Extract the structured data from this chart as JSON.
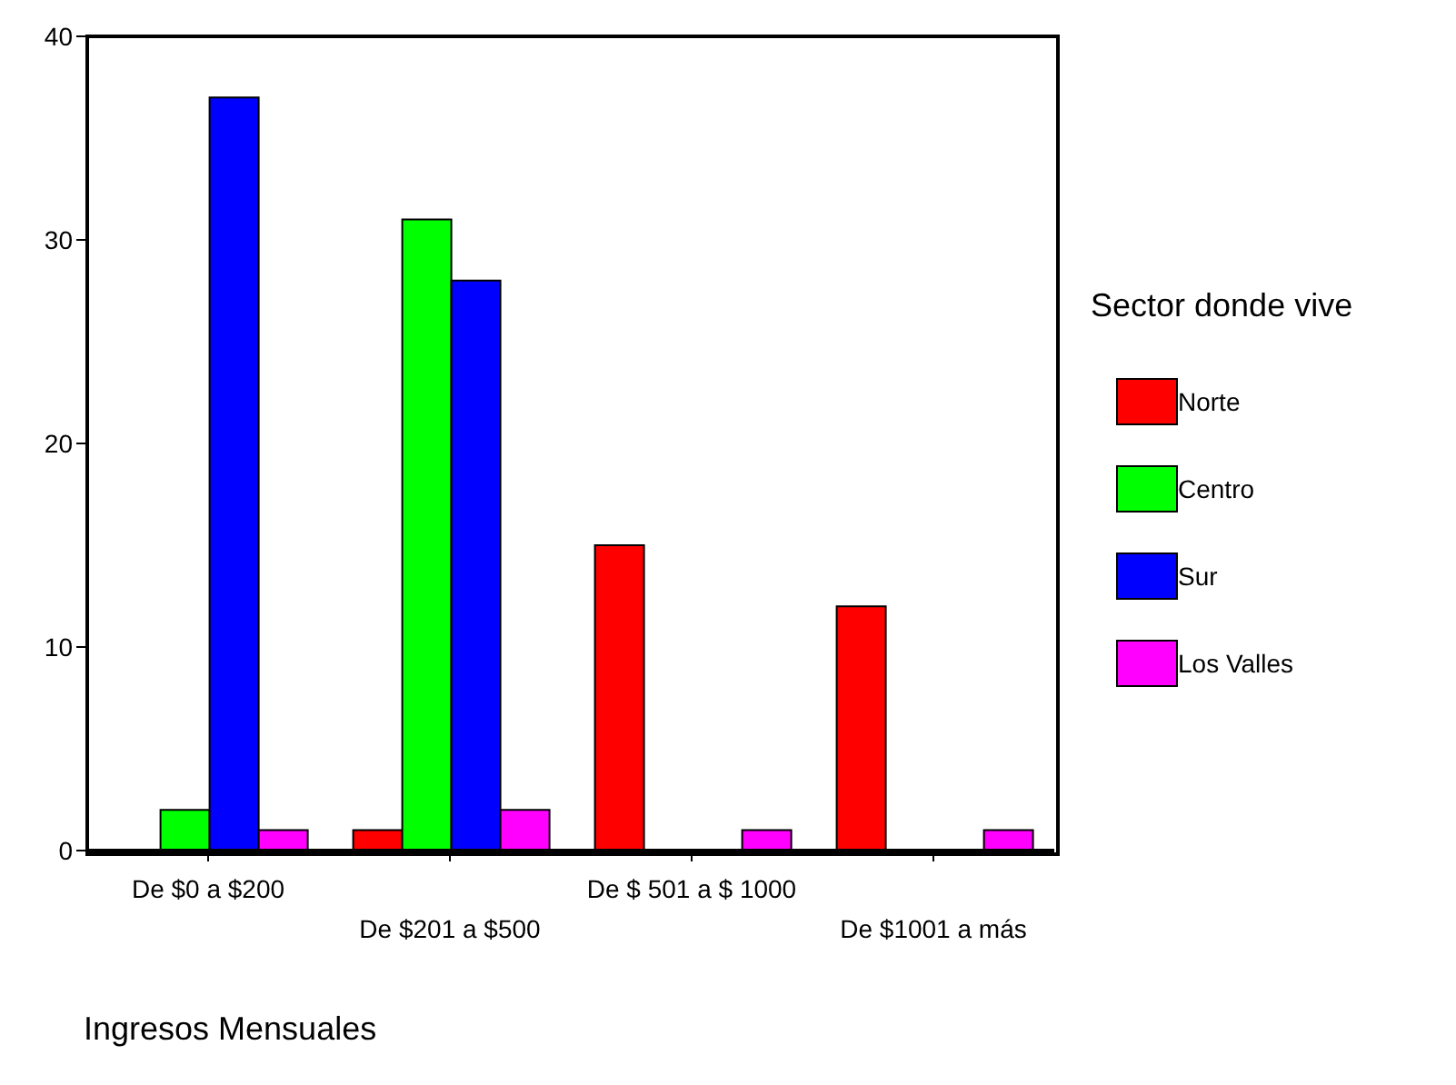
{
  "chart_data": {
    "type": "bar",
    "xlabel": "Ingresos Mensuales",
    "legend_title": "Sector donde vive",
    "categories": [
      "De $0 a $200",
      "De $201 a $500",
      "De $ 501 a $ 1000",
      "De $1001 a más"
    ],
    "series": [
      {
        "name": "Norte",
        "color": "#ff0000",
        "values": [
          null,
          1,
          15,
          12
        ]
      },
      {
        "name": "Centro",
        "color": "#00ff00",
        "values": [
          2,
          31,
          null,
          null
        ]
      },
      {
        "name": "Sur",
        "color": "#0000ff",
        "values": [
          37,
          28,
          null,
          null
        ]
      },
      {
        "name": "Los Valles",
        "color": "#ff00ff",
        "values": [
          1,
          2,
          1,
          1
        ]
      }
    ],
    "ylim": [
      0,
      40
    ],
    "yticks": [
      0,
      10,
      20,
      30,
      40
    ],
    "legend": "right",
    "grid": false
  }
}
